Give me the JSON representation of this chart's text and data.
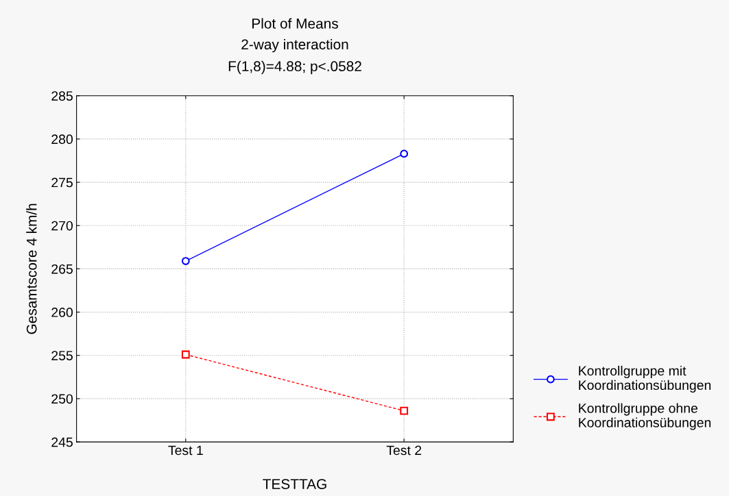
{
  "chart_data": {
    "type": "line",
    "title": "Plot of Means",
    "subtitle": "2-way interaction",
    "annotations": [
      "F(1,8)=4.88; p<.0582"
    ],
    "xlabel": "TESTTAG",
    "ylabel": "Gesamtscore 4 km/h",
    "categories": [
      "Test 1",
      "Test 2"
    ],
    "series": [
      {
        "name": "Kontrollgruppe mit\nKoordinationsübungen",
        "color": "#0000ff",
        "values": [
          265.9,
          278.3
        ],
        "marker": "circle",
        "line_style": "solid"
      },
      {
        "name": "Kontrollgruppe ohne\nKoordinationsübungen",
        "color": "#ff0000",
        "values": [
          255.1,
          248.6
        ],
        "marker": "square",
        "line_style": "dashed"
      }
    ],
    "ylim": [
      245,
      285
    ],
    "yticks": [
      245,
      250,
      255,
      260,
      265,
      270,
      275,
      280,
      285
    ],
    "grid": true,
    "legend": "bottom right"
  }
}
